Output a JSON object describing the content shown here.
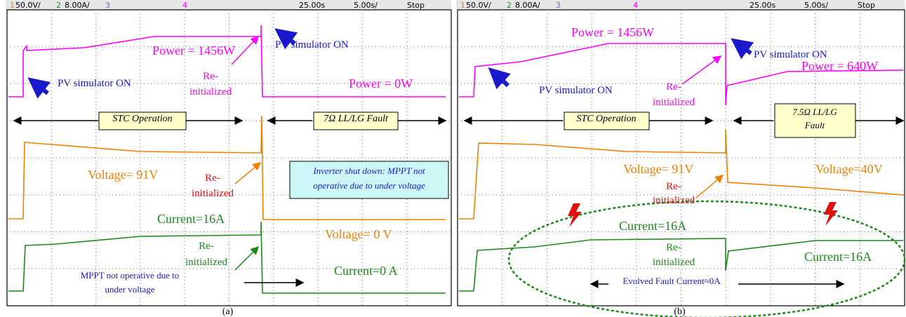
{
  "panels": [
    {
      "header": {
        "ch1": "1",
        "ch1_scale": "50.0V/",
        "ch2": "2",
        "ch2_scale": "8.00A/",
        "ch3": "3",
        "ch4": "4",
        "time": "25.00s",
        "timebase": "5.00s/",
        "status": "Stop"
      },
      "texts": [
        "Power = 1456W",
        "PV simulator ON",
        "Re-",
        "initialized",
        "PV simulator ON",
        "Power = 0W",
        "STC Operation",
        "7Ω  LL/LG Fault",
        "Voltage= 91V",
        "Re-",
        "initialized",
        "Inverter shut down: MPPT not",
        "operative due to under voltage",
        "Current=16A",
        "Re-",
        "initialized",
        "Voltage= 0 V",
        "MPPT not operative due to",
        "under voltage",
        "Current=0 A"
      ],
      "caption": "(a)"
    },
    {
      "header": {
        "ch1": "1",
        "ch1_scale": "50.0V/",
        "ch2": "2",
        "ch2_scale": "8.00A/",
        "ch3": "3",
        "ch4": "4",
        "time": "25.00s",
        "timebase": "5.00s/",
        "status": "Stop"
      },
      "texts": [
        "Power = 1456W",
        "PV simulator ON",
        "Re-",
        "initialized",
        "PV simulator ON",
        "Power = 640W",
        "STC Operation",
        "7.5Ω LL/LG",
        "Fault",
        "Voltage= 91V",
        "Re-",
        "initialized",
        "Voltage=40V",
        "Current=16A",
        "Re-",
        "initialized",
        "Current=16A",
        "Evolved Fault Current≈0A"
      ],
      "caption": "(b)"
    }
  ]
}
